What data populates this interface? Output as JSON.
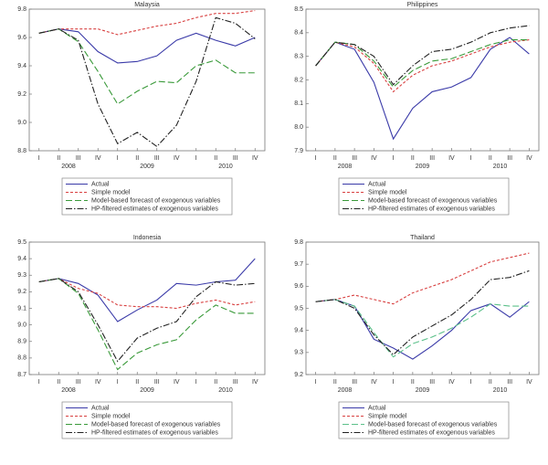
{
  "chart_data": [
    {
      "type": "line",
      "title": "Malaysia",
      "categories": [
        "I",
        "II",
        "III",
        "IV",
        "I",
        "II",
        "III",
        "IV",
        "I",
        "II",
        "III",
        "IV"
      ],
      "year_labels": [
        "2008",
        "2009",
        "2010"
      ],
      "ylim": [
        8.8,
        9.8
      ],
      "yticks": [
        8.8,
        {
          "value": 9,
          "label": "9.0"
        },
        9.2,
        9.4,
        9.6,
        9.8
      ],
      "series": [
        {
          "name": "Actual",
          "color": "#3a3aa8",
          "dash": "none",
          "values": [
            9.63,
            9.66,
            9.64,
            9.5,
            9.42,
            9.43,
            9.47,
            9.58,
            9.63,
            9.58,
            9.54,
            9.6
          ]
        },
        {
          "name": "Simple model",
          "color": "#d84040",
          "dash": "3,2",
          "values": [
            9.63,
            9.66,
            9.66,
            9.66,
            9.62,
            9.65,
            9.68,
            9.7,
            9.74,
            9.77,
            9.77,
            9.79
          ]
        },
        {
          "name": "Model-based forecast of exogenous variables",
          "color": "#3a9a3a",
          "dash": "7,3",
          "values": [
            9.63,
            9.66,
            9.57,
            9.36,
            9.13,
            9.22,
            9.29,
            9.28,
            9.4,
            9.44,
            9.35,
            9.35
          ]
        },
        {
          "name": "HP-filtered estimates of exogenous variables",
          "color": "#222222",
          "dash": "7,2,1.5,2",
          "values": [
            9.63,
            9.66,
            9.58,
            9.13,
            8.85,
            8.93,
            8.83,
            8.98,
            9.29,
            9.74,
            9.7,
            9.59
          ]
        }
      ]
    },
    {
      "type": "line",
      "title": "Philippines",
      "categories": [
        "I",
        "II",
        "III",
        "IV",
        "I",
        "II",
        "III",
        "IV",
        "I",
        "II",
        "III",
        "IV"
      ],
      "year_labels": [
        "2008",
        "2009",
        "2010"
      ],
      "ylim": [
        7.9,
        8.5
      ],
      "yticks": [
        7.9,
        {
          "value": 8,
          "label": "8.0"
        },
        8.1,
        8.2,
        8.3,
        8.4,
        8.5
      ],
      "series": [
        {
          "name": "Actual",
          "color": "#3a3aa8",
          "dash": "none",
          "values": [
            8.26,
            8.36,
            8.33,
            8.19,
            7.95,
            8.08,
            8.15,
            8.17,
            8.21,
            8.33,
            8.38,
            8.31
          ]
        },
        {
          "name": "Simple model",
          "color": "#d84040",
          "dash": "3,2",
          "values": [
            8.26,
            8.36,
            8.34,
            8.27,
            8.15,
            8.22,
            8.26,
            8.28,
            8.31,
            8.34,
            8.36,
            8.37
          ]
        },
        {
          "name": "Model-based forecast of exogenous variables",
          "color": "#3a9a3a",
          "dash": "7,3",
          "values": [
            8.26,
            8.36,
            8.35,
            8.28,
            8.17,
            8.24,
            8.28,
            8.29,
            8.32,
            8.35,
            8.37,
            8.37
          ]
        },
        {
          "name": "HP-filtered estimates of exogenous variables",
          "color": "#222222",
          "dash": "7,2,1.5,2",
          "values": [
            8.26,
            8.36,
            8.35,
            8.3,
            8.18,
            8.26,
            8.32,
            8.33,
            8.36,
            8.4,
            8.42,
            8.43
          ]
        }
      ]
    },
    {
      "type": "line",
      "title": "Indonesia",
      "categories": [
        "I",
        "II",
        "III",
        "IV",
        "I",
        "II",
        "III",
        "IV",
        "I",
        "II",
        "III",
        "IV"
      ],
      "year_labels": [
        "2008",
        "2009",
        "2010"
      ],
      "ylim": [
        8.7,
        9.5
      ],
      "yticks": [
        8.7,
        8.8,
        8.9,
        {
          "value": 9,
          "label": "9.0"
        },
        9.1,
        9.2,
        9.3,
        9.4,
        9.5
      ],
      "series": [
        {
          "name": "Actual",
          "color": "#3a3aa8",
          "dash": "none",
          "values": [
            9.26,
            9.28,
            9.25,
            9.18,
            9.02,
            9.09,
            9.15,
            9.25,
            9.24,
            9.26,
            9.27,
            9.4
          ]
        },
        {
          "name": "Simple model",
          "color": "#d84040",
          "dash": "3,2",
          "values": [
            9.26,
            9.28,
            9.22,
            9.19,
            9.12,
            9.11,
            9.11,
            9.1,
            9.13,
            9.15,
            9.12,
            9.14
          ]
        },
        {
          "name": "Model-based forecast of exogenous variables",
          "color": "#3a9a3a",
          "dash": "7,3",
          "values": [
            9.26,
            9.28,
            9.19,
            8.97,
            8.73,
            8.83,
            8.88,
            8.91,
            9.03,
            9.12,
            9.07,
            9.07
          ]
        },
        {
          "name": "HP-filtered estimates of exogenous variables",
          "color": "#222222",
          "dash": "7,2,1.5,2",
          "values": [
            9.26,
            9.28,
            9.2,
            9.0,
            8.78,
            8.92,
            8.98,
            9.02,
            9.17,
            9.26,
            9.24,
            9.25
          ]
        }
      ]
    },
    {
      "type": "line",
      "title": "Thailand",
      "categories": [
        "I",
        "II",
        "III",
        "IV",
        "I",
        "II",
        "III",
        "IV",
        "I",
        "II",
        "III",
        "IV"
      ],
      "year_labels": [
        "2008",
        "2009",
        "2010"
      ],
      "ylim": [
        9.2,
        9.8
      ],
      "yticks": [
        9.2,
        9.3,
        9.4,
        9.5,
        9.6,
        9.7,
        9.8
      ],
      "series": [
        {
          "name": "Actual",
          "color": "#3a3aa8",
          "dash": "none",
          "values": [
            9.53,
            9.54,
            9.51,
            9.36,
            9.32,
            9.27,
            9.33,
            9.4,
            9.49,
            9.52,
            9.46,
            9.53
          ]
        },
        {
          "name": "Simple model",
          "color": "#d84040",
          "dash": "3,2",
          "values": [
            9.53,
            9.54,
            9.56,
            9.54,
            9.52,
            9.57,
            9.6,
            9.63,
            9.67,
            9.71,
            9.73,
            9.75
          ]
        },
        {
          "name": "Model-based forecast of exogenous variables",
          "color": "#5cc08a",
          "dash": "7,3",
          "values": [
            9.53,
            9.54,
            9.51,
            9.39,
            9.28,
            9.34,
            9.37,
            9.41,
            9.46,
            9.52,
            9.51,
            9.51
          ]
        },
        {
          "name": "HP-filtered estimates of exogenous variables",
          "color": "#222222",
          "dash": "7,2,1.5,2",
          "values": [
            9.53,
            9.54,
            9.5,
            9.38,
            9.29,
            9.37,
            9.42,
            9.47,
            9.54,
            9.63,
            9.64,
            9.67
          ]
        }
      ]
    }
  ]
}
